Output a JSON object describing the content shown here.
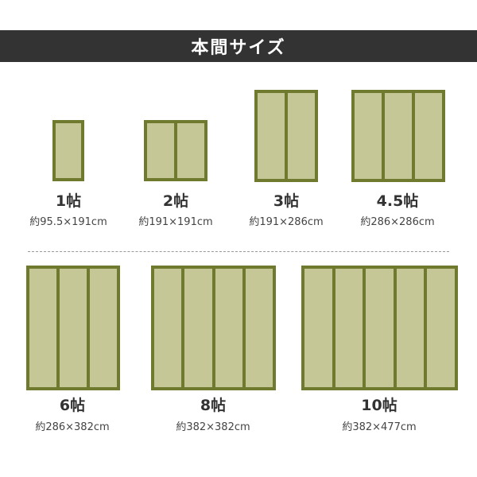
{
  "header": {
    "title": "本間サイズ"
  },
  "colors": {
    "header_bg": "#333333",
    "mat_border": "#6f7a2e",
    "mat_fill": "#c5c896"
  },
  "mats": [
    {
      "name": "1帖",
      "size": "約95.5×191cm",
      "panels": 1
    },
    {
      "name": "2帖",
      "size": "約191×191cm",
      "panels": 2
    },
    {
      "name": "3帖",
      "size": "約191×286cm",
      "panels": 2
    },
    {
      "name": "4.5帖",
      "size": "約286×286cm",
      "panels": 3
    },
    {
      "name": "6帖",
      "size": "約286×382cm",
      "panels": 3
    },
    {
      "name": "8帖",
      "size": "約382×382cm",
      "panels": 4
    },
    {
      "name": "10帖",
      "size": "約382×477cm",
      "panels": 5
    }
  ]
}
